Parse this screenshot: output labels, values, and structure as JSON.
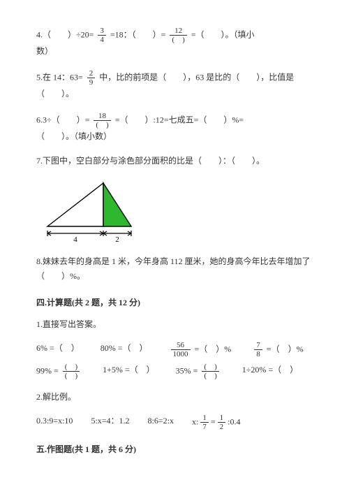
{
  "q4": {
    "text_a": "4.（　　）÷20=",
    "frac1_num": "3",
    "frac1_den": "4",
    "text_b": "=18：（　　）=",
    "frac2_num": "12",
    "frac2_den_paren": "　",
    "text_c": "=（　　）。（填小",
    "text_d": "数）"
  },
  "q5": {
    "text_a": "5.在 14：63=",
    "frac_num": "2",
    "frac_den": "9",
    "text_b": "中，比的前项是（　　），63 是比的（　　），比值是",
    "text_c": "（　　）。"
  },
  "q6": {
    "text_a": "6.3÷（　　）=",
    "frac_num": "18",
    "frac_den_paren": "　",
    "text_b": "=（　　）:12=七成五=（　　）%=",
    "text_c": "（　　）。（填小数）"
  },
  "q7": "7.下图中，空白部分与涂色部分面积的比是（　　）：（　　）。",
  "triangle": {
    "width": 140,
    "height": 92,
    "fill_with": "#ffffff",
    "fill_green": "#2fb82f",
    "stroke": "#000000",
    "base_left_label": "4",
    "base_right_label": "2"
  },
  "q8": {
    "line1": "8.妹妹去年的身高是 1 米，今年身高 112 厘米，她的身高今年比去年增加了",
    "line2": "（　　）%。"
  },
  "section4_title": "四.计算题(共 2 题，共 12 分)",
  "calc1": {
    "heading": "1.直接写出答案。",
    "row1": {
      "c1": "6% =（　）",
      "c2": "80% =（　）",
      "c3_a": "",
      "c3_num": "56",
      "c3_den": "1000",
      "c3_b": "=（　）%",
      "c4_a": "",
      "c4_num": "7",
      "c4_den": "8",
      "c4_b": "=（　）%"
    },
    "row2": {
      "c1_a": "99% =",
      "c1_num_paren": "　",
      "c1_den_paren": "　",
      "c2": "1+5% =（　）",
      "c3_a": "35% =",
      "c3_num_paren": "　",
      "c3_den_paren": "　",
      "c4": "1÷20% =（　）"
    }
  },
  "calc2": {
    "heading": "2.解比例。",
    "items": {
      "a": "0.3:9=x:10",
      "b": "5:x=4：1.2",
      "c": "8:6=2:x",
      "d_a": "x:",
      "d_num1": "1",
      "d_den1": "7",
      "d_mid": "=",
      "d_num2": "1",
      "d_den2": "2",
      "d_b": ":0.4"
    }
  },
  "section5_title": "五.作图题(共 1 题，共 6 分)"
}
